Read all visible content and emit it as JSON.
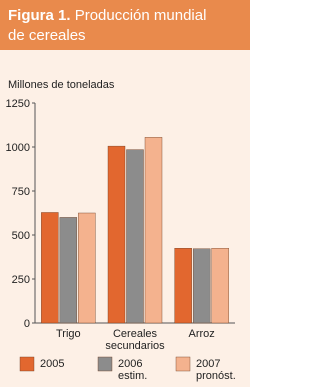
{
  "chart_data": {
    "type": "bar",
    "figure_label": "Figura 1.",
    "title": "Producción mundial de cereales",
    "y_label": "Millones de toneladas",
    "categories": [
      "Trigo",
      "Cereales secundarios",
      "Arroz"
    ],
    "series": [
      {
        "name": "2005",
        "color": "#e2672f",
        "values": [
          628,
          1005,
          425
        ]
      },
      {
        "name": "2006 estim.",
        "color": "#8c8c8c",
        "values": [
          600,
          985,
          422
        ]
      },
      {
        "name": "2007 pronóst.",
        "color": "#f4b28e",
        "values": [
          625,
          1055,
          425
        ]
      }
    ],
    "ylim": [
      0,
      1250
    ],
    "yticks": [
      0,
      250,
      500,
      750,
      1000,
      1250
    ],
    "grid": true
  }
}
